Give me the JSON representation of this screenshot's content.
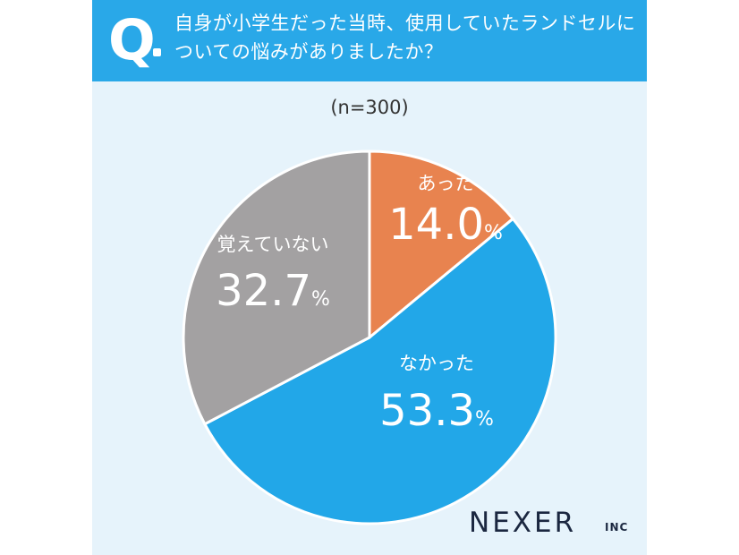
{
  "header": {
    "q_mark": "Q",
    "question": "自身が小学生だった当時、使用していたランドセルについての悩みがありましたか？"
  },
  "sample_size": "(n=300)",
  "logo": {
    "text": "NEXER",
    "sub": "INC"
  },
  "colors": {
    "header": "#29a8e8",
    "background": "#e6f3fb",
    "slice_atta": "#e8834f",
    "slice_nakatta": "#22a7e8",
    "slice_oboete": "#a3a1a2"
  },
  "chart_data": {
    "type": "pie",
    "unit": "%",
    "slices": [
      {
        "label": "あった",
        "value": 14.0,
        "display": "14.0",
        "color": "#e8834f"
      },
      {
        "label": "なかった",
        "value": 53.3,
        "display": "53.3",
        "color": "#22a7e8"
      },
      {
        "label": "覚えていない",
        "value": 32.7,
        "display": "32.7",
        "color": "#a3a1a2"
      }
    ]
  }
}
